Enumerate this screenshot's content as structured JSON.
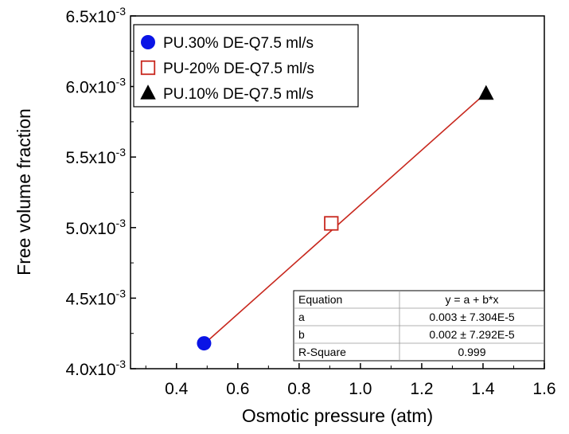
{
  "chart_data": {
    "type": "scatter",
    "xlabel": "Osmotic pressure (atm)",
    "ylabel": "Free volume fraction",
    "xlim": [
      0.25,
      1.6
    ],
    "ylim": [
      0.004,
      0.0065
    ],
    "x_ticks": [
      0.4,
      0.6,
      0.8,
      1.0,
      1.2,
      1.4,
      1.6
    ],
    "x_tick_labels": [
      "0.4",
      "0.6",
      "0.8",
      "1.0",
      "1.2",
      "1.4",
      "1.6"
    ],
    "y_ticks": [
      0.004,
      0.0045,
      0.005,
      0.0055,
      0.006,
      0.0065
    ],
    "y_tick_labels": [
      {
        "mantissa": "4.0x10",
        "exp": "-3"
      },
      {
        "mantissa": "4.5x10",
        "exp": "-3"
      },
      {
        "mantissa": "5.0x10",
        "exp": "-3"
      },
      {
        "mantissa": "5.5x10",
        "exp": "-3"
      },
      {
        "mantissa": "6.0x10",
        "exp": "-3"
      },
      {
        "mantissa": "6.5x10",
        "exp": "-3"
      }
    ],
    "grid": false,
    "legend_position": "top-left",
    "series": [
      {
        "name": "PU.30% DE-Q7.5 ml/s",
        "marker": "filled-circle",
        "color": "#0a14e6",
        "points": [
          {
            "x": 0.49,
            "y": 0.00418
          }
        ]
      },
      {
        "name": "PU-20% DE-Q7.5 ml/s",
        "marker": "open-square",
        "color": "#c8281e",
        "points": [
          {
            "x": 0.905,
            "y": 0.00503
          }
        ]
      },
      {
        "name": "PU.10% DE-Q7.5 ml/s",
        "marker": "filled-triangle",
        "color": "#000000",
        "points": [
          {
            "x": 1.41,
            "y": 0.00595
          }
        ]
      }
    ],
    "fit_line": {
      "color": "#c8281e",
      "x": [
        0.49,
        1.41
      ],
      "y": [
        0.004175,
        0.005955
      ]
    },
    "fit_table": {
      "rows": [
        [
          "Equation",
          "y = a + b*x"
        ],
        [
          "a",
          "0.003 ± 7.304E-5"
        ],
        [
          "b",
          "0.002 ± 7.292E-5"
        ],
        [
          "R-Square",
          "0.999"
        ]
      ],
      "position": "bottom-right"
    }
  }
}
